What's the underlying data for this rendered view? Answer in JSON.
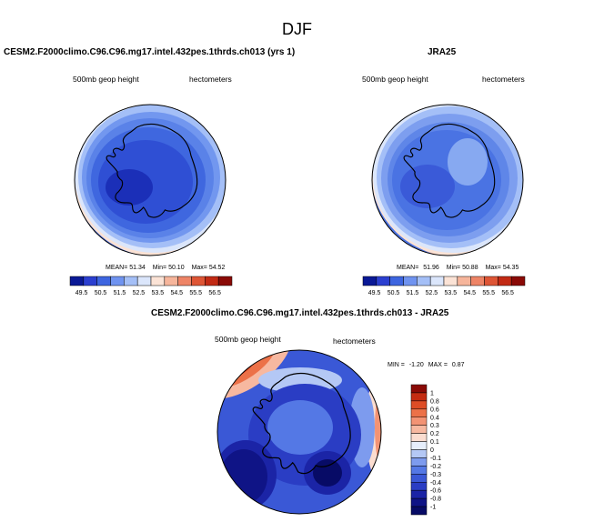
{
  "figure": {
    "title": "DJF"
  },
  "panels": [
    {
      "id": "model",
      "title": "CESM2.F2000climo.C96.C96.mg17.intel.432pes.1thrds.ch013 (yrs 1)",
      "left_label": "500mb geop height",
      "right_label": "hectometers",
      "stats": {
        "mean_label": "MEAN=",
        "mean": "51.34",
        "min_label": "Min=",
        "min": "50.10",
        "max_label": "Max=",
        "max": "54.52"
      }
    },
    {
      "id": "obs",
      "title": "JRA25",
      "left_label": "500mb geop height",
      "right_label": "hectometers",
      "stats": {
        "mean_label": "MEAN=",
        "mean": "51.96",
        "min_label": "Min=",
        "min": "50.88",
        "max_label": "Max=",
        "max": "54.35"
      }
    },
    {
      "id": "diff",
      "title": "CESM2.F2000climo.C96.C96.mg17.intel.432pes.1thrds.ch013 - JRA25",
      "left_label": "500mb geop height",
      "right_label": "hectometers",
      "stats": {
        "min_label": "MIN =",
        "min": "-1.20",
        "max_label": "MAX =",
        "max": "0.87"
      }
    }
  ],
  "chart_data": [
    {
      "type": "heatmap",
      "title": "CESM2.F2000climo.C96.C96.mg17.intel.432pes.1thrds.ch013 (yrs 1)",
      "variable": "500mb geop height",
      "units": "hectometers",
      "projection": "south polar stereographic",
      "mean": 51.34,
      "min": 50.1,
      "max": 54.52,
      "colorbar_levels": [
        "49.5",
        "50.5",
        "51.5",
        "52.5",
        "53.5",
        "54.5",
        "55.5",
        "56.5"
      ],
      "field": {
        "pole_value": 50.4,
        "coast_value": 50.7,
        "edge_value": 54.5
      }
    },
    {
      "type": "heatmap",
      "title": "JRA25",
      "variable": "500mb geop height",
      "units": "hectometers",
      "projection": "south polar stereographic",
      "mean": 51.96,
      "min": 50.88,
      "max": 54.35,
      "colorbar_levels": [
        "49.5",
        "50.5",
        "51.5",
        "52.5",
        "53.5",
        "54.5",
        "55.5",
        "56.5"
      ],
      "field": {
        "pole_value": 51.4,
        "coast_value": 51.1,
        "edge_value": 54.3
      }
    },
    {
      "type": "heatmap",
      "title": "CESM2.F2000climo.C96.C96.mg17.intel.432pes.1thrds.ch013 - JRA25",
      "variable": "500mb geop height",
      "units": "hectometers",
      "projection": "south polar stereographic",
      "min": -1.2,
      "max": 0.87,
      "colorbar_levels": [
        "1",
        "0.8",
        "0.6",
        "0.4",
        "0.3",
        "0.2",
        "0.1",
        "0",
        "-0.1",
        "-0.2",
        "-0.3",
        "-0.4",
        "-0.6",
        "-0.8",
        "-1"
      ],
      "field": {
        "typical_value": -0.4,
        "min_centers": -1.0,
        "positive_fringe": 0.6
      }
    }
  ],
  "colors": {
    "seq_bar": [
      "#0a1996",
      "#2b3fd0",
      "#3d65e0",
      "#6f93f0",
      "#a4bff7",
      "#dbe6fb",
      "#fbe3d6",
      "#f6b59b",
      "#ee8466",
      "#de5535",
      "#c22a14",
      "#8a0a06"
    ],
    "div_bar": [
      "#8a0a06",
      "#c42c12",
      "#de4d26",
      "#ec7148",
      "#f39374",
      "#f7b8a0",
      "#fbddd0",
      "#e6eefb",
      "#b4c8f5",
      "#7d9bee",
      "#5478e5",
      "#3a58d6",
      "#2a3dc4",
      "#1b24a6",
      "#0f1486",
      "#070b66"
    ]
  }
}
